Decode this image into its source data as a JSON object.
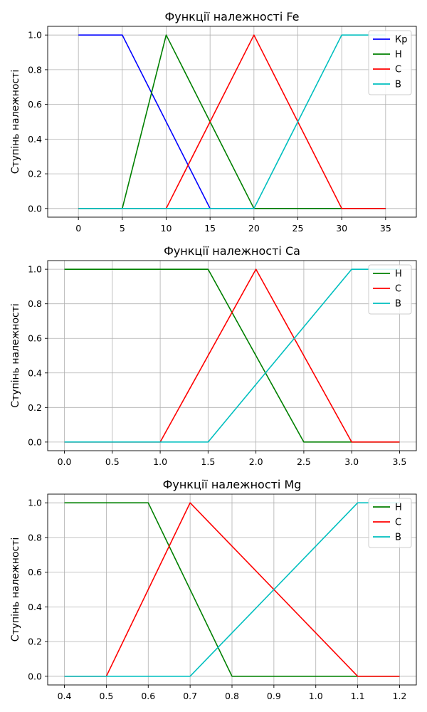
{
  "chart_data": [
    {
      "type": "line",
      "title": "Функції належності Fe",
      "ylabel": "Ступінь належності",
      "xlabel": "",
      "xlim": [
        -3.5,
        38.5
      ],
      "ylim": [
        -0.05,
        1.05
      ],
      "xticks": [
        0,
        5,
        10,
        15,
        20,
        25,
        30,
        35
      ],
      "xtick_labels": [
        "0",
        "5",
        "10",
        "15",
        "20",
        "25",
        "30",
        "35"
      ],
      "yticks": [
        0,
        0.2,
        0.4,
        0.6,
        0.8,
        1.0
      ],
      "ytick_labels": [
        "0.0",
        "0.2",
        "0.4",
        "0.6",
        "0.8",
        "1.0"
      ],
      "grid": true,
      "legend_position": "top-right",
      "series": [
        {
          "name": "Кр",
          "color": "#0000ff",
          "x": [
            0,
            5,
            15,
            35
          ],
          "y": [
            1,
            1,
            0,
            0
          ]
        },
        {
          "name": "Н",
          "color": "#008000",
          "x": [
            0,
            5,
            10,
            20,
            35
          ],
          "y": [
            0,
            0,
            1,
            0,
            0
          ]
        },
        {
          "name": "С",
          "color": "#ff0000",
          "x": [
            0,
            10,
            20,
            30,
            35
          ],
          "y": [
            0,
            0,
            1,
            0,
            0
          ]
        },
        {
          "name": "В",
          "color": "#00bfbf",
          "x": [
            0,
            20,
            30,
            35
          ],
          "y": [
            0,
            0,
            1,
            1
          ]
        }
      ]
    },
    {
      "type": "line",
      "title": "Функції належності Ca",
      "ylabel": "Ступінь належності",
      "xlabel": "",
      "xlim": [
        -0.175,
        3.675
      ],
      "ylim": [
        -0.05,
        1.05
      ],
      "xticks": [
        0,
        0.5,
        1.0,
        1.5,
        2.0,
        2.5,
        3.0,
        3.5
      ],
      "xtick_labels": [
        "0.0",
        "0.5",
        "1.0",
        "1.5",
        "2.0",
        "2.5",
        "3.0",
        "3.5"
      ],
      "yticks": [
        0,
        0.2,
        0.4,
        0.6,
        0.8,
        1.0
      ],
      "ytick_labels": [
        "0.0",
        "0.2",
        "0.4",
        "0.6",
        "0.8",
        "1.0"
      ],
      "grid": true,
      "legend_position": "top-right",
      "series": [
        {
          "name": "Н",
          "color": "#008000",
          "x": [
            0,
            1.5,
            2.5,
            3.5
          ],
          "y": [
            1,
            1,
            0,
            0
          ]
        },
        {
          "name": "С",
          "color": "#ff0000",
          "x": [
            0,
            1.0,
            2.0,
            3.0,
            3.5
          ],
          "y": [
            0,
            0,
            1,
            0,
            0
          ]
        },
        {
          "name": "В",
          "color": "#00bfbf",
          "x": [
            0,
            1.5,
            3.0,
            3.5
          ],
          "y": [
            0,
            0,
            1,
            1
          ]
        }
      ]
    },
    {
      "type": "line",
      "title": "Функції належності Mg",
      "ylabel": "Ступінь належності",
      "xlabel": "",
      "xlim": [
        0.36,
        1.24
      ],
      "ylim": [
        -0.05,
        1.05
      ],
      "xticks": [
        0.4,
        0.5,
        0.6,
        0.7,
        0.8,
        0.9,
        1.0,
        1.1,
        1.2
      ],
      "xtick_labels": [
        "0.4",
        "0.5",
        "0.6",
        "0.7",
        "0.8",
        "0.9",
        "1.0",
        "1.1",
        "1.2"
      ],
      "yticks": [
        0,
        0.2,
        0.4,
        0.6,
        0.8,
        1.0
      ],
      "ytick_labels": [
        "0.0",
        "0.2",
        "0.4",
        "0.6",
        "0.8",
        "1.0"
      ],
      "grid": true,
      "legend_position": "top-right",
      "series": [
        {
          "name": "Н",
          "color": "#008000",
          "x": [
            0.4,
            0.6,
            0.8,
            1.2
          ],
          "y": [
            1,
            1,
            0,
            0
          ]
        },
        {
          "name": "С",
          "color": "#ff0000",
          "x": [
            0.4,
            0.5,
            0.7,
            1.1,
            1.2
          ],
          "y": [
            0,
            0,
            1,
            0,
            0
          ]
        },
        {
          "name": "В",
          "color": "#00bfbf",
          "x": [
            0.4,
            0.7,
            1.1,
            1.2
          ],
          "y": [
            0,
            0,
            1,
            1
          ]
        }
      ]
    }
  ]
}
